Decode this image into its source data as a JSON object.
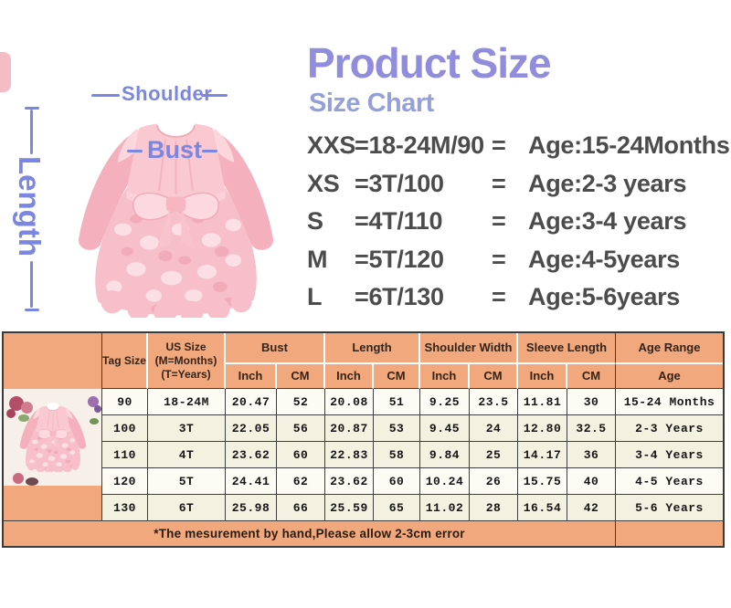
{
  "title": {
    "main": "Product Size",
    "sub": "Size Chart"
  },
  "diagram": {
    "shoulder_label": "Shoulder",
    "bust_label": "Bust",
    "length_label": "Length"
  },
  "size_list": {
    "equals": "=",
    "rows": [
      {
        "code": "XXS",
        "value": "18-24M/90",
        "age": "Age:15-24Months"
      },
      {
        "code": "XS",
        "value": "3T/100",
        "age": "Age:2-3 years"
      },
      {
        "code": "S",
        "value": "4T/110",
        "age": "Age:3-4 years"
      },
      {
        "code": "M",
        "value": "5T/120",
        "age": "Age:4-5years"
      },
      {
        "code": "L",
        "value": "6T/130",
        "age": "Age:5-6years"
      }
    ]
  },
  "table": {
    "header": {
      "tag_size": "Tag Size",
      "us_size_lines": [
        "US Size",
        "(M=Months)",
        "(T=Years)"
      ],
      "bust": "Bust",
      "length": "Length",
      "shoulder_width": "Shoulder Width",
      "sleeve_length": "Sleeve Length",
      "age_range": "Age Range",
      "inch": "Inch",
      "cm": "CM",
      "age": "Age"
    },
    "rows": [
      {
        "tag": "90",
        "us": "18-24M",
        "bust_in": "20.47",
        "bust_cm": "52",
        "len_in": "20.08",
        "len_cm": "51",
        "sh_in": "9.25",
        "sh_cm": "23.5",
        "sl_in": "11.81",
        "sl_cm": "30",
        "age": "15-24 Months"
      },
      {
        "tag": "100",
        "us": "3T",
        "bust_in": "22.05",
        "bust_cm": "56",
        "len_in": "20.87",
        "len_cm": "53",
        "sh_in": "9.45",
        "sh_cm": "24",
        "sl_in": "12.80",
        "sl_cm": "32.5",
        "age": "2-3 Years"
      },
      {
        "tag": "110",
        "us": "4T",
        "bust_in": "23.62",
        "bust_cm": "60",
        "len_in": "22.83",
        "len_cm": "58",
        "sh_in": "9.84",
        "sh_cm": "25",
        "sl_in": "14.17",
        "sl_cm": "36",
        "age": "3-4 Years"
      },
      {
        "tag": "120",
        "us": "5T",
        "bust_in": "24.41",
        "bust_cm": "62",
        "len_in": "23.62",
        "len_cm": "60",
        "sh_in": "10.24",
        "sh_cm": "26",
        "sl_in": "15.75",
        "sl_cm": "40",
        "age": "4-5 Years"
      },
      {
        "tag": "130",
        "us": "6T",
        "bust_in": "25.98",
        "bust_cm": "66",
        "len_in": "25.59",
        "len_cm": "65",
        "sh_in": "11.02",
        "sh_cm": "28",
        "sl_in": "16.54",
        "sl_cm": "42",
        "age": "5-6 Years"
      }
    ],
    "footnote": "*The mesurement by hand,Please allow 2-3cm error"
  },
  "colors": {
    "title_accent": "#918ddc",
    "subtitle_accent": "#95a0d9",
    "annotation": "#7b86e0",
    "table_header_bg": "#f0a87c",
    "row_cream": "#f3f2e0",
    "row_light": "#fcfbf4",
    "dress_pink": "#f9c8d0"
  }
}
